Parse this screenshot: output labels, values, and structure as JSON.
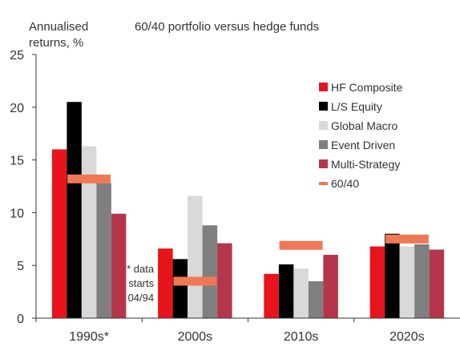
{
  "chart_data": {
    "type": "bar",
    "title": "60/40 portfolio versus hedge funds",
    "ylabel_lines": [
      "Annualised",
      "returns, %"
    ],
    "ylim": [
      0,
      25
    ],
    "yticks": [
      0,
      5,
      10,
      15,
      20,
      25
    ],
    "categories": [
      "1990s*",
      "2000s",
      "2010s",
      "2020s"
    ],
    "series": [
      {
        "name": "HF Composite",
        "color": "#e8141c",
        "values": [
          16.0,
          6.6,
          4.2,
          6.8
        ]
      },
      {
        "name": "L/S Equity",
        "color": "#000000",
        "values": [
          20.5,
          5.6,
          5.1,
          8.0
        ]
      },
      {
        "name": "Global Macro",
        "color": "#d9d9d9",
        "values": [
          16.3,
          11.6,
          4.7,
          6.8
        ]
      },
      {
        "name": "Event Driven",
        "color": "#7f7f7f",
        "values": [
          12.8,
          8.8,
          3.5,
          7.0
        ]
      },
      {
        "name": "Multi-Strategy",
        "color": "#b5364a",
        "values": [
          9.9,
          7.1,
          6.0,
          6.5
        ]
      }
    ],
    "benchmark": {
      "name": "60/40",
      "color": "#f07855",
      "values": [
        13.2,
        3.5,
        6.9,
        7.5
      ]
    },
    "annotation_lines": [
      "* data",
      "starts",
      "04/94"
    ],
    "legend_position": "right",
    "grid": false
  }
}
